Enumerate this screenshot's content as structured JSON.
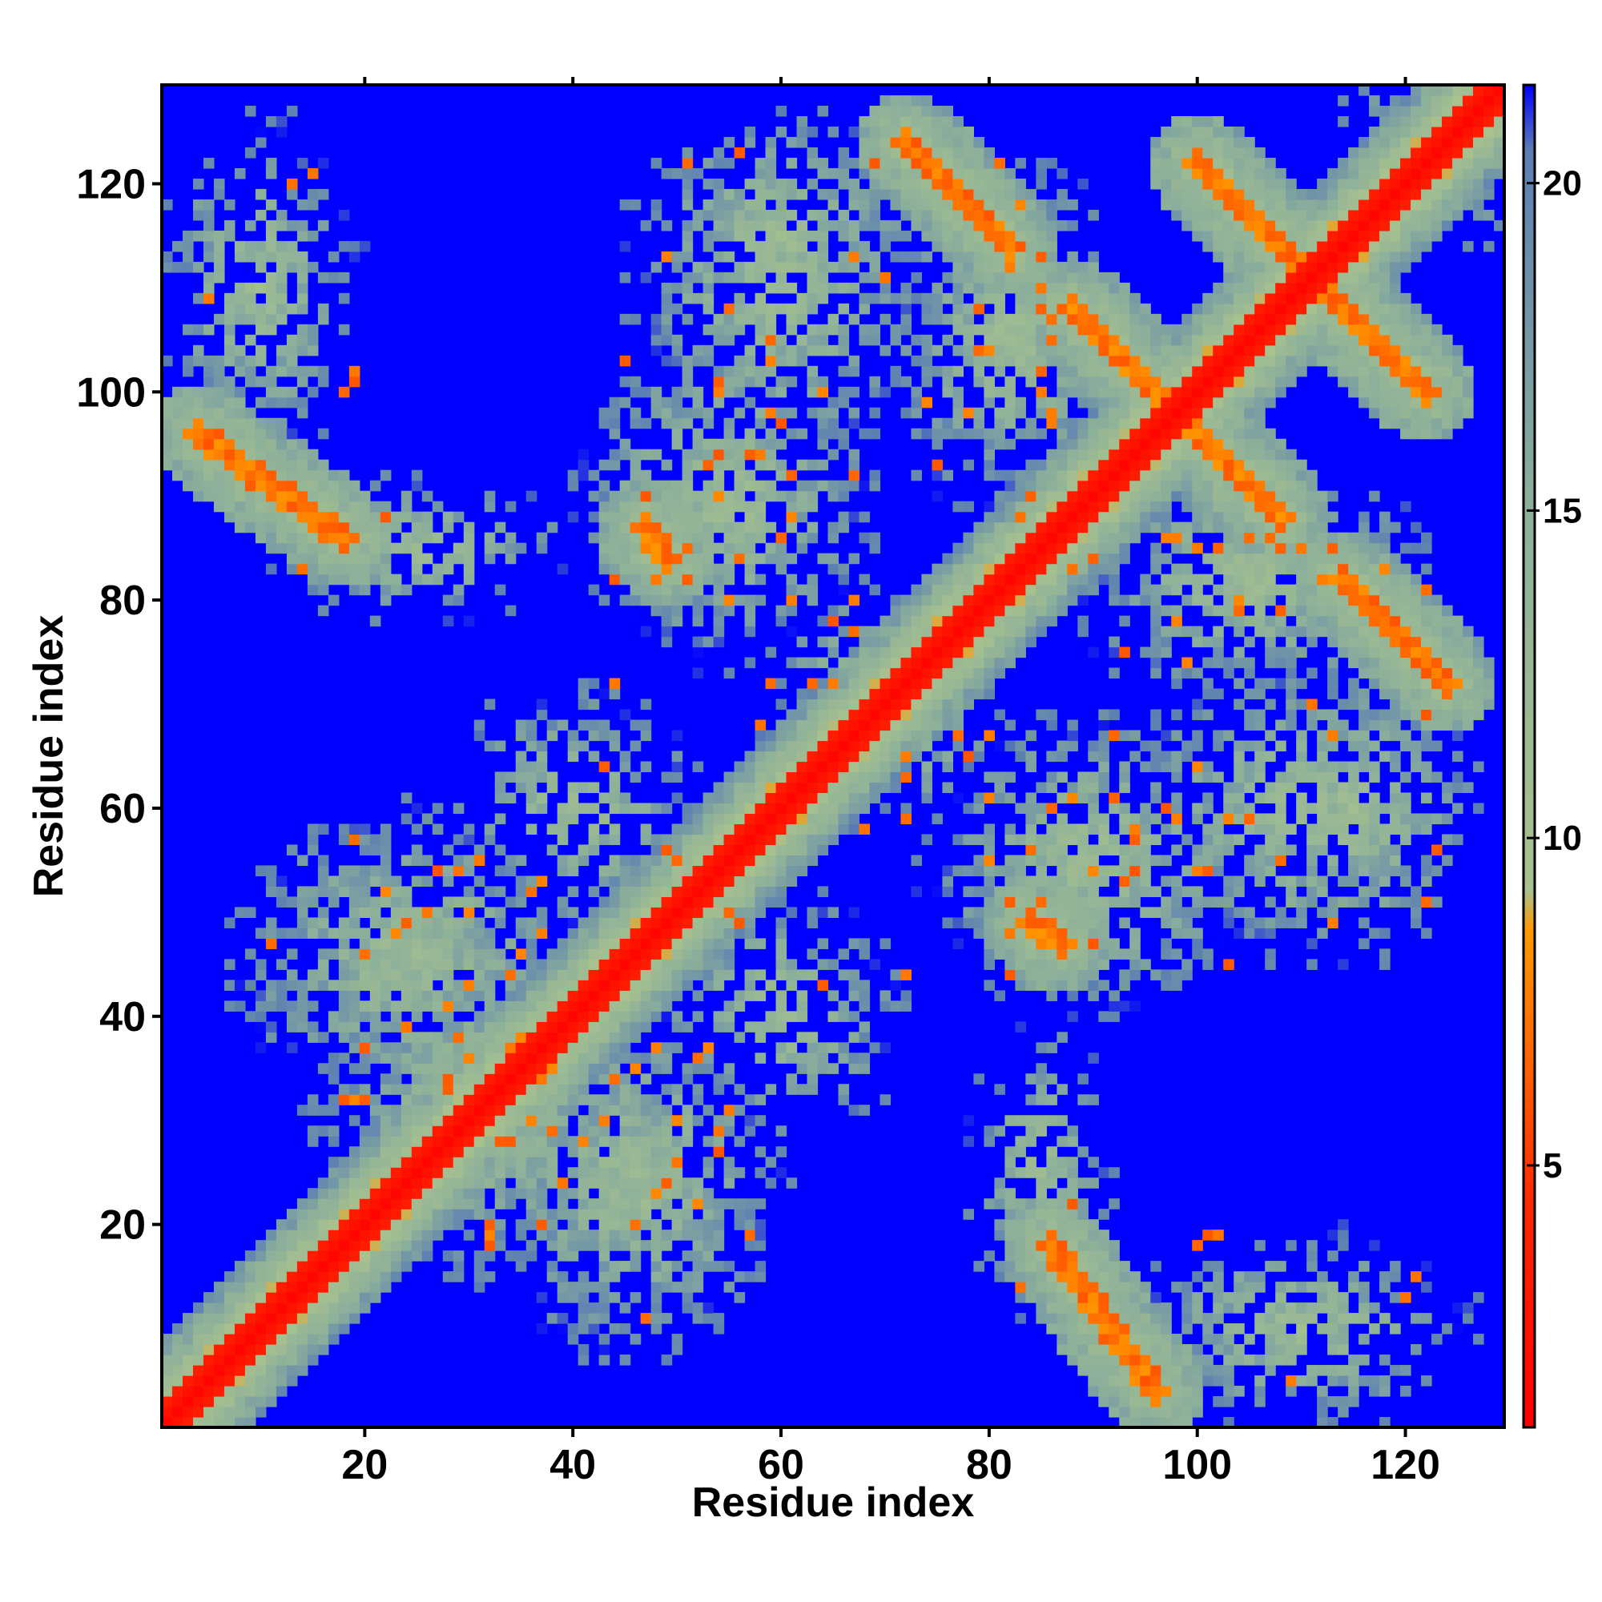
{
  "chart_data": {
    "type": "heatmap",
    "title": "",
    "xlabel": "Residue index",
    "ylabel": "Residue index",
    "n_residues": 129,
    "xlim": [
      1,
      129
    ],
    "ylim": [
      1,
      129
    ],
    "x_ticks": [
      20,
      40,
      60,
      80,
      100,
      120
    ],
    "y_ticks": [
      20,
      40,
      60,
      80,
      100,
      120
    ],
    "colorbar": {
      "ticks": [
        5,
        10,
        15,
        20
      ],
      "range": [
        1,
        21.5
      ],
      "stops": [
        {
          "value": 1,
          "color": "#ff0000"
        },
        {
          "value": 4.5,
          "color": "#ff2a00"
        },
        {
          "value": 8.6,
          "color": "#ff9900"
        },
        {
          "value": 9.2,
          "color": "#a8c18e"
        },
        {
          "value": 15,
          "color": "#8db09a"
        },
        {
          "value": 20.5,
          "color": "#5c7fb3"
        },
        {
          "value": 21.5,
          "color": "#0000ff"
        }
      ]
    },
    "background_value": 21.5,
    "features": {
      "diagonal_band": {
        "ridge": 2.0,
        "width": 2.4,
        "halo": 9.0
      },
      "parallel_strands": [
        {
          "a": [
            72,
            124
          ],
          "b": [
            82,
            114
          ]
        },
        {
          "a": [
            88,
            108
          ],
          "b": [
            98,
            98
          ]
        },
        {
          "a": [
            98,
            98
          ],
          "b": [
            108,
            88
          ]
        },
        {
          "a": [
            100,
            122
          ],
          "b": [
            110,
            112
          ]
        },
        {
          "a": [
            110,
            110
          ],
          "b": [
            122,
            98
          ]
        },
        {
          "a": [
            112,
            82
          ],
          "b": [
            124,
            71
          ]
        },
        {
          "a": [
            4,
            96
          ],
          "b": [
            18,
            86
          ]
        },
        {
          "a": [
            86,
            18
          ],
          "b": [
            96,
            4
          ]
        },
        {
          "a": [
            47,
            87
          ],
          "b": [
            49,
            84
          ]
        },
        {
          "a": [
            84,
            48
          ],
          "b": [
            86,
            45
          ]
        }
      ],
      "contact_clusters": [
        {
          "cx": 32,
          "cy": 32,
          "sx": 14,
          "sy": 14,
          "strength": 0.95
        },
        {
          "cx": 24,
          "cy": 46,
          "sx": 14,
          "sy": 12,
          "strength": 0.85
        },
        {
          "cx": 46,
          "cy": 24,
          "sx": 12,
          "sy": 14,
          "strength": 0.85
        },
        {
          "cx": 55,
          "cy": 90,
          "sx": 12,
          "sy": 14,
          "strength": 0.8
        },
        {
          "cx": 90,
          "cy": 55,
          "sx": 14,
          "sy": 12,
          "strength": 0.8
        },
        {
          "cx": 60,
          "cy": 110,
          "sx": 12,
          "sy": 14,
          "strength": 0.7
        },
        {
          "cx": 110,
          "cy": 60,
          "sx": 14,
          "sy": 12,
          "strength": 0.7
        },
        {
          "cx": 10,
          "cy": 110,
          "sx": 8,
          "sy": 14,
          "strength": 0.65
        },
        {
          "cx": 110,
          "cy": 10,
          "sx": 14,
          "sy": 8,
          "strength": 0.65
        },
        {
          "cx": 25,
          "cy": 85,
          "sx": 12,
          "sy": 6,
          "strength": 0.55
        },
        {
          "cx": 85,
          "cy": 25,
          "sx": 6,
          "sy": 12,
          "strength": 0.55
        },
        {
          "cx": 82,
          "cy": 105,
          "sx": 10,
          "sy": 14,
          "strength": 0.75
        },
        {
          "cx": 105,
          "cy": 82,
          "sx": 14,
          "sy": 10,
          "strength": 0.75
        },
        {
          "cx": 115,
          "cy": 60,
          "sx": 10,
          "sy": 12,
          "strength": 0.7
        },
        {
          "cx": 60,
          "cy": 115,
          "sx": 12,
          "sy": 10,
          "strength": 0.7
        },
        {
          "cx": 70,
          "cy": 70,
          "sx": 10,
          "sy": 10,
          "strength": 0.6
        },
        {
          "cx": 122,
          "cy": 122,
          "sx": 8,
          "sy": 8,
          "strength": 0.6
        },
        {
          "cx": 40,
          "cy": 60,
          "sx": 10,
          "sy": 10,
          "strength": 0.5
        },
        {
          "cx": 60,
          "cy": 40,
          "sx": 10,
          "sy": 10,
          "strength": 0.5
        }
      ]
    }
  }
}
